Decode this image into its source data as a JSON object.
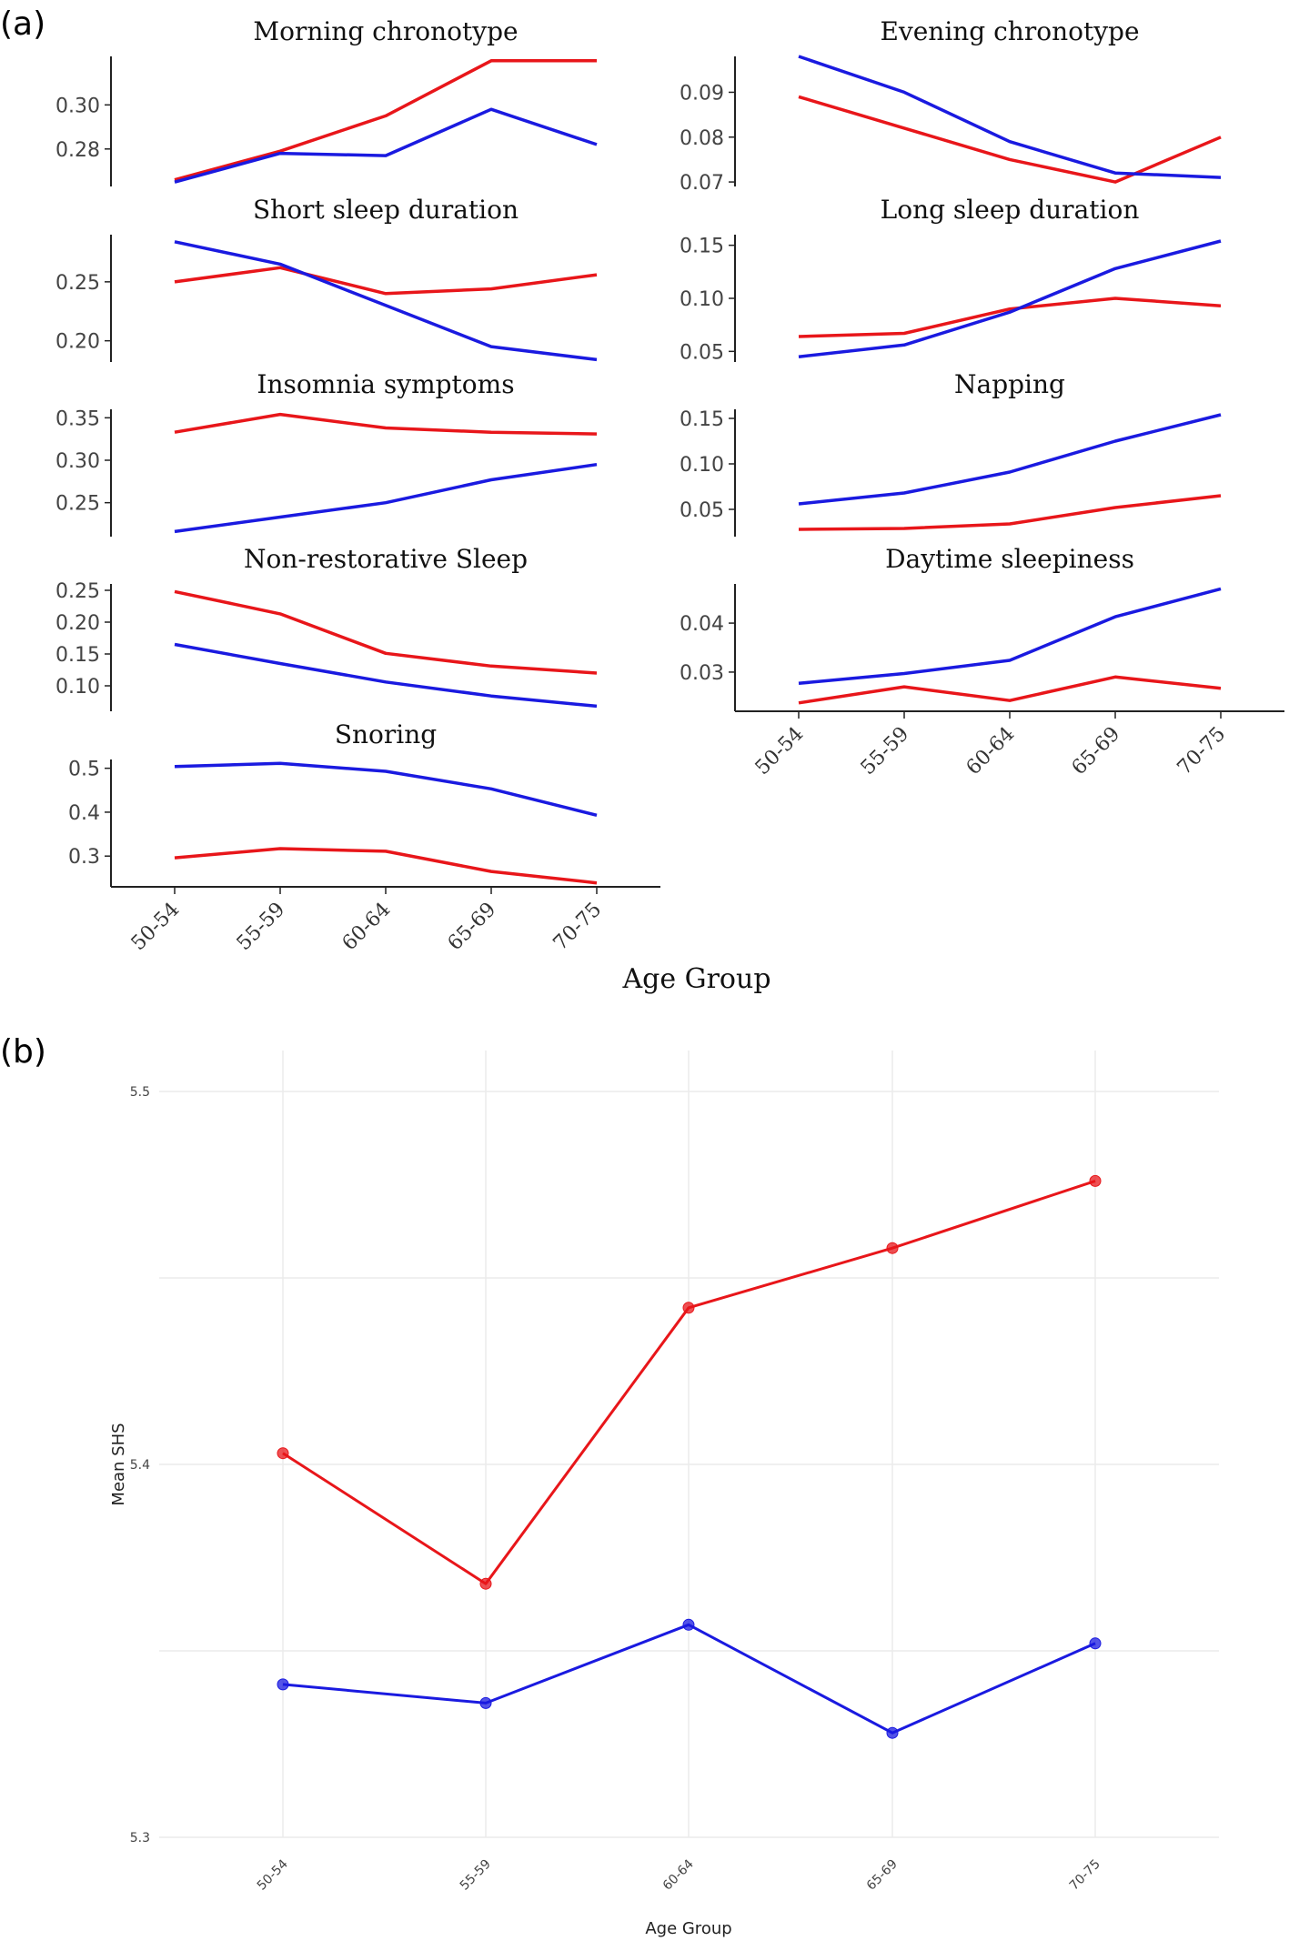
{
  "panel_a_label": "(a)",
  "panel_b_label": "(b)",
  "colors": {
    "series_red": "#e8161a",
    "series_blue": "#1a1ae0"
  },
  "chart_data": [
    {
      "type": "line",
      "title": "Morning chronotype",
      "categories": [
        "50-54",
        "55-59",
        "60-64",
        "65-69",
        "70-75"
      ],
      "ylim": [
        0.263,
        0.322
      ],
      "yticks": [
        0.28,
        0.3
      ],
      "ytick_labels": [
        "0.28",
        "0.30"
      ],
      "series": [
        {
          "color": "red",
          "values": [
            0.266,
            0.279,
            0.295,
            0.32,
            0.32
          ]
        },
        {
          "color": "blue",
          "values": [
            0.265,
            0.278,
            0.277,
            0.298,
            0.282
          ]
        }
      ]
    },
    {
      "type": "line",
      "title": "Evening chronotype",
      "categories": [
        "50-54",
        "55-59",
        "60-64",
        "65-69",
        "70-75"
      ],
      "ylim": [
        0.069,
        0.098
      ],
      "yticks": [
        0.07,
        0.08,
        0.09
      ],
      "ytick_labels": [
        "0.07",
        "0.08",
        "0.09"
      ],
      "series": [
        {
          "color": "red",
          "values": [
            0.089,
            0.082,
            0.075,
            0.07,
            0.08
          ]
        },
        {
          "color": "blue",
          "values": [
            0.098,
            0.09,
            0.079,
            0.072,
            0.071
          ]
        }
      ]
    },
    {
      "type": "line",
      "title": "Short sleep duration",
      "categories": [
        "50-54",
        "55-59",
        "60-64",
        "65-69",
        "70-75"
      ],
      "ylim": [
        0.182,
        0.29
      ],
      "yticks": [
        0.2,
        0.25
      ],
      "ytick_labels": [
        "0.20",
        "0.25"
      ],
      "series": [
        {
          "color": "red",
          "values": [
            0.25,
            0.262,
            0.24,
            0.244,
            0.256
          ]
        },
        {
          "color": "blue",
          "values": [
            0.284,
            0.265,
            0.23,
            0.195,
            0.184
          ]
        }
      ]
    },
    {
      "type": "line",
      "title": "Long sleep duration",
      "categories": [
        "50-54",
        "55-59",
        "60-64",
        "65-69",
        "70-75"
      ],
      "ylim": [
        0.04,
        0.16
      ],
      "yticks": [
        0.05,
        0.1,
        0.15
      ],
      "ytick_labels": [
        "0.05",
        "0.10",
        "0.15"
      ],
      "series": [
        {
          "color": "red",
          "values": [
            0.064,
            0.067,
            0.09,
            0.1,
            0.093
          ]
        },
        {
          "color": "blue",
          "values": [
            0.045,
            0.056,
            0.087,
            0.128,
            0.154
          ]
        }
      ]
    },
    {
      "type": "line",
      "title": "Insomnia symptoms",
      "categories": [
        "50-54",
        "55-59",
        "60-64",
        "65-69",
        "70-75"
      ],
      "ylim": [
        0.21,
        0.36
      ],
      "yticks": [
        0.25,
        0.3,
        0.35
      ],
      "ytick_labels": [
        "0.25",
        "0.30",
        "0.35"
      ],
      "series": [
        {
          "color": "red",
          "values": [
            0.333,
            0.354,
            0.338,
            0.333,
            0.331
          ]
        },
        {
          "color": "blue",
          "values": [
            0.216,
            0.233,
            0.25,
            0.277,
            0.295
          ]
        }
      ]
    },
    {
      "type": "line",
      "title": "Napping",
      "categories": [
        "50-54",
        "55-59",
        "60-64",
        "65-69",
        "70-75"
      ],
      "ylim": [
        0.02,
        0.16
      ],
      "yticks": [
        0.05,
        0.1,
        0.15
      ],
      "ytick_labels": [
        "0.05",
        "0.10",
        "0.15"
      ],
      "series": [
        {
          "color": "red",
          "values": [
            0.028,
            0.029,
            0.034,
            0.052,
            0.065
          ]
        },
        {
          "color": "blue",
          "values": [
            0.056,
            0.068,
            0.091,
            0.125,
            0.154
          ]
        }
      ]
    },
    {
      "type": "line",
      "title": "Non-restorative Sleep",
      "categories": [
        "50-54",
        "55-59",
        "60-64",
        "65-69",
        "70-75"
      ],
      "ylim": [
        0.06,
        0.26
      ],
      "yticks": [
        0.1,
        0.15,
        0.2,
        0.25
      ],
      "ytick_labels": [
        "0.10",
        "0.15",
        "0.20",
        "0.25"
      ],
      "series": [
        {
          "color": "red",
          "values": [
            0.248,
            0.213,
            0.151,
            0.131,
            0.12
          ]
        },
        {
          "color": "blue",
          "values": [
            0.165,
            0.135,
            0.106,
            0.084,
            0.068
          ]
        }
      ]
    },
    {
      "type": "line",
      "title": "Daytime sleepiness",
      "categories": [
        "50-54",
        "55-59",
        "60-64",
        "65-69",
        "70-75"
      ],
      "ylim": [
        0.022,
        0.048
      ],
      "yticks": [
        0.03,
        0.04
      ],
      "ytick_labels": [
        "0.03",
        "0.04"
      ],
      "series": [
        {
          "color": "red",
          "values": [
            0.0237,
            0.027,
            0.0242,
            0.029,
            0.0267
          ]
        },
        {
          "color": "blue",
          "values": [
            0.0277,
            0.0297,
            0.0324,
            0.0413,
            0.047
          ]
        }
      ]
    },
    {
      "type": "line",
      "title": "Snoring",
      "categories": [
        "50-54",
        "55-59",
        "60-64",
        "65-69",
        "70-75"
      ],
      "ylim": [
        0.23,
        0.52
      ],
      "yticks": [
        0.3,
        0.4,
        0.5
      ],
      "ytick_labels": [
        "0.3",
        "0.4",
        "0.5"
      ],
      "xlabel": "Age Group",
      "series": [
        {
          "color": "red",
          "values": [
            0.296,
            0.317,
            0.311,
            0.265,
            0.239
          ]
        },
        {
          "color": "blue",
          "values": [
            0.504,
            0.511,
            0.493,
            0.453,
            0.393
          ]
        }
      ]
    },
    {
      "type": "line",
      "markers": true,
      "categories": [
        "50-54",
        "55-59",
        "60-64",
        "65-69",
        "70-75"
      ],
      "xlabel": "Age Group",
      "ylabel": "Mean SHS",
      "ylim": [
        5.3,
        5.5
      ],
      "yticks": [
        5.3,
        5.4,
        5.5
      ],
      "ytick_labels": [
        "5.3",
        "5.4",
        "5.5"
      ],
      "grid": true,
      "series": [
        {
          "color": "red",
          "values": [
            5.403,
            5.368,
            5.442,
            5.458,
            5.476
          ]
        },
        {
          "color": "blue",
          "values": [
            5.341,
            5.336,
            5.357,
            5.328,
            5.352
          ]
        }
      ]
    }
  ]
}
